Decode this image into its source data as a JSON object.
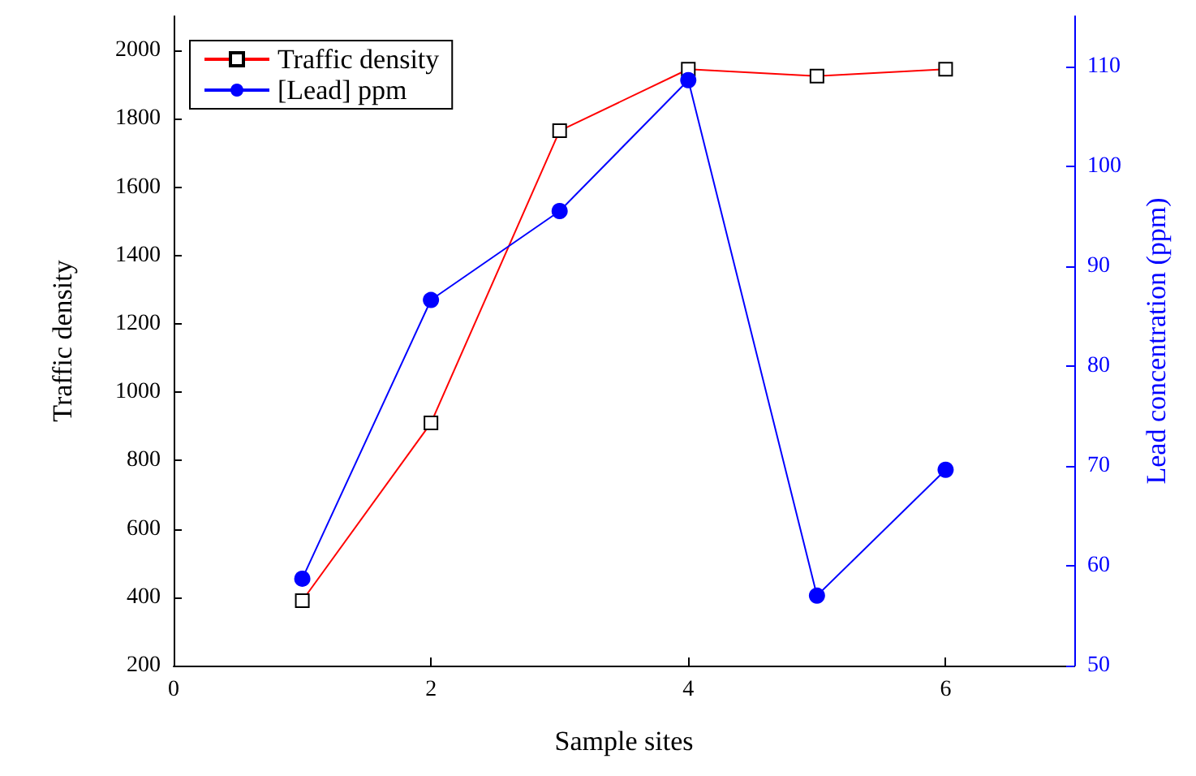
{
  "chart_data": {
    "type": "line",
    "xlabel": "Sample sites",
    "ylabel": "Traffic density",
    "y2label": "Lead concentration (ppm)",
    "x": [
      1,
      2,
      3,
      4,
      5,
      6
    ],
    "series": [
      {
        "name": "Traffic density",
        "color": "#ff0000",
        "marker": "square",
        "values": [
          390,
          910,
          1765,
          1945,
          1925,
          1945
        ]
      },
      {
        "name": "[Lead] ppm",
        "color": "#0000ff",
        "marker": "circle",
        "axis": "y2",
        "values": [
          58.7,
          86.6,
          95.5,
          108.6,
          57.0,
          69.6
        ]
      }
    ],
    "xlim": [
      0,
      7
    ],
    "xticks": [
      0,
      2,
      4,
      6
    ],
    "ylim": [
      200,
      2100
    ],
    "yticks": [
      200,
      400,
      600,
      800,
      1000,
      1200,
      1400,
      1600,
      1800,
      2000
    ],
    "y2lim": [
      50,
      115
    ],
    "y2ticks": [
      50,
      60,
      70,
      80,
      90,
      100,
      110
    ],
    "grid": false,
    "legend": "top left"
  }
}
